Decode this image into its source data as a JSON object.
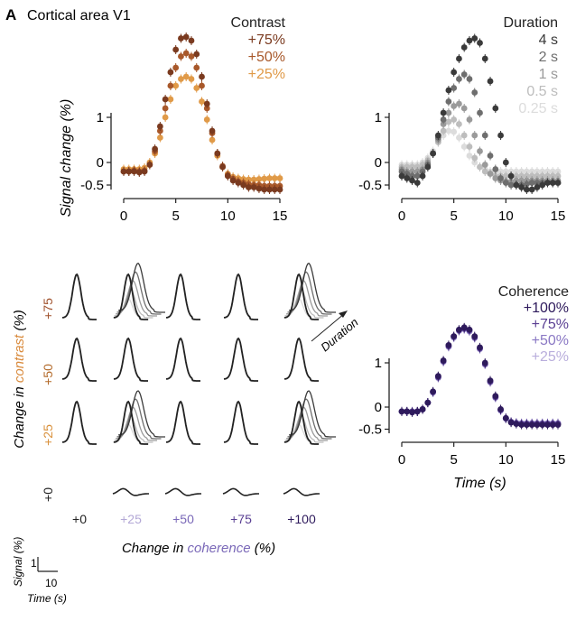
{
  "figure": {
    "panel_letter": "A",
    "panel_title": "Cortical area V1"
  },
  "grid": {
    "row_labels": [
      "+75",
      "+50",
      "+25",
      "+0"
    ],
    "row_colors": [
      "#a0522d",
      "#b36a2a",
      "#d9913c",
      "#222222"
    ],
    "col_labels": [
      "+0",
      "+25",
      "+50",
      "+75",
      "+100"
    ],
    "col_colors": [
      "#222222",
      "#b3a8d6",
      "#7a68b8",
      "#5a3f93",
      "#2e1a5c"
    ],
    "ylabel_prefix": "Change in ",
    "ylabel_emph": "contrast",
    "ylabel_suffix": " (%)",
    "xlabel_prefix": "Change in ",
    "xlabel_emph": "coherence",
    "xlabel_suffix": " (%)",
    "duration_label": "Duration",
    "scalebar_signal": "Signal (%)",
    "scalebar_time": "Time (s)",
    "scalebar_y_value": "1",
    "scalebar_x_value": "10"
  },
  "colors": {
    "contrast_75": "#7a3a1f",
    "contrast_50": "#a8582a",
    "contrast_25": "#e09a48",
    "duration": [
      "#3a3a3a",
      "#6e6e6e",
      "#9a9a9a",
      "#bdbdbd",
      "#dcdcdc"
    ],
    "coherence": [
      "#2e1a5c",
      "#5a3f93",
      "#8a78c4",
      "#b9aedc"
    ]
  },
  "chart_data": [
    {
      "type": "scatter",
      "title": "Contrast",
      "xlabel": "",
      "ylabel": "Signal change (%)",
      "xlim": [
        0,
        15
      ],
      "ylim": [
        -0.6,
        2.9
      ],
      "xticks": [
        "0",
        "5",
        "10",
        "15"
      ],
      "yticks": [
        "-0.5",
        "0",
        "1"
      ],
      "series": [
        {
          "name": "+75%",
          "x": [
            0,
            0.5,
            1,
            1.5,
            2,
            2.5,
            3,
            3.5,
            4,
            4.5,
            5,
            5.5,
            6,
            6.5,
            7,
            7.5,
            8,
            8.5,
            9,
            9.5,
            10,
            10.5,
            11,
            11.5,
            12,
            12.5,
            13,
            13.5,
            14,
            14.5,
            15
          ],
          "y": [
            -0.2,
            -0.2,
            -0.2,
            -0.22,
            -0.2,
            -0.05,
            0.3,
            0.8,
            1.4,
            2.0,
            2.5,
            2.75,
            2.78,
            2.7,
            2.4,
            1.9,
            1.3,
            0.7,
            0.2,
            -0.1,
            -0.3,
            -0.4,
            -0.45,
            -0.5,
            -0.55,
            -0.55,
            -0.58,
            -0.6,
            -0.6,
            -0.6,
            -0.6
          ]
        },
        {
          "name": "+50%",
          "x": [
            0,
            0.5,
            1,
            1.5,
            2,
            2.5,
            3,
            3.5,
            4,
            4.5,
            5,
            5.5,
            6,
            6.5,
            7,
            7.5,
            8,
            8.5,
            9,
            9.5,
            10,
            10.5,
            11,
            11.5,
            12,
            12.5,
            13,
            13.5,
            14,
            14.5,
            15
          ],
          "y": [
            -0.2,
            -0.2,
            -0.18,
            -0.2,
            -0.18,
            -0.05,
            0.25,
            0.7,
            1.2,
            1.7,
            2.1,
            2.35,
            2.42,
            2.35,
            2.1,
            1.7,
            1.2,
            0.65,
            0.2,
            -0.08,
            -0.28,
            -0.36,
            -0.42,
            -0.45,
            -0.48,
            -0.5,
            -0.5,
            -0.52,
            -0.52,
            -0.52,
            -0.52
          ]
        },
        {
          "name": "+25%",
          "x": [
            0,
            0.5,
            1,
            1.5,
            2,
            2.5,
            3,
            3.5,
            4,
            4.5,
            5,
            5.5,
            6,
            6.5,
            7,
            7.5,
            8,
            8.5,
            9,
            9.5,
            10,
            10.5,
            11,
            11.5,
            12,
            12.5,
            13,
            13.5,
            14,
            14.5,
            15
          ],
          "y": [
            -0.15,
            -0.15,
            -0.15,
            -0.15,
            -0.12,
            0.0,
            0.2,
            0.55,
            1.0,
            1.4,
            1.7,
            1.85,
            1.9,
            1.85,
            1.65,
            1.35,
            0.95,
            0.5,
            0.15,
            -0.1,
            -0.25,
            -0.32,
            -0.35,
            -0.37,
            -0.38,
            -0.38,
            -0.37,
            -0.36,
            -0.35,
            -0.35,
            -0.35
          ]
        }
      ]
    },
    {
      "type": "scatter",
      "title": "Duration",
      "xlabel": "",
      "ylabel": "",
      "xlim": [
        0,
        15
      ],
      "ylim": [
        -0.6,
        2.9
      ],
      "xticks": [
        "0",
        "5",
        "10",
        "15"
      ],
      "yticks": [
        "-0.5",
        "0",
        "1"
      ],
      "series": [
        {
          "name": "4 s",
          "x": [
            0,
            0.5,
            1,
            1.5,
            2,
            2.5,
            3,
            3.5,
            4,
            4.5,
            5,
            5.5,
            6,
            6.5,
            7,
            7.5,
            8,
            8.5,
            9,
            9.5,
            10,
            10.5,
            11,
            11.5,
            12,
            12.5,
            13,
            13.5,
            14,
            14.5,
            15
          ],
          "y": [
            -0.3,
            -0.35,
            -0.4,
            -0.45,
            -0.3,
            -0.1,
            0.2,
            0.6,
            1.1,
            1.6,
            2.0,
            2.3,
            2.55,
            2.7,
            2.75,
            2.65,
            2.3,
            1.8,
            1.2,
            0.6,
            0.0,
            -0.3,
            -0.5,
            -0.55,
            -0.6,
            -0.6,
            -0.55,
            -0.5,
            -0.45,
            -0.45,
            -0.45
          ]
        },
        {
          "name": "2 s",
          "x": [
            0,
            0.5,
            1,
            1.5,
            2,
            2.5,
            3,
            3.5,
            4,
            4.5,
            5,
            5.5,
            6,
            6.5,
            7,
            7.5,
            8,
            8.5,
            9,
            9.5,
            10,
            10.5,
            11,
            11.5,
            12,
            12.5,
            13,
            13.5,
            14,
            14.5,
            15
          ],
          "y": [
            -0.2,
            -0.25,
            -0.3,
            -0.3,
            -0.2,
            -0.05,
            0.2,
            0.55,
            0.95,
            1.35,
            1.65,
            1.85,
            1.95,
            1.85,
            1.55,
            1.1,
            0.6,
            0.15,
            -0.15,
            -0.35,
            -0.45,
            -0.5,
            -0.5,
            -0.5,
            -0.48,
            -0.45,
            -0.45,
            -0.45,
            -0.45,
            -0.45,
            -0.45
          ]
        },
        {
          "name": "1 s",
          "x": [
            0,
            0.5,
            1,
            1.5,
            2,
            2.5,
            3,
            3.5,
            4,
            4.5,
            5,
            5.5,
            6,
            6.5,
            7,
            7.5,
            8,
            8.5,
            9,
            9.5,
            10,
            10.5,
            11,
            11.5,
            12,
            12.5,
            13,
            13.5,
            14,
            14.5,
            15
          ],
          "y": [
            -0.15,
            -0.2,
            -0.2,
            -0.2,
            -0.15,
            0.0,
            0.2,
            0.5,
            0.85,
            1.1,
            1.25,
            1.3,
            1.2,
            0.95,
            0.6,
            0.25,
            -0.05,
            -0.25,
            -0.35,
            -0.4,
            -0.42,
            -0.42,
            -0.4,
            -0.4,
            -0.4,
            -0.4,
            -0.4,
            -0.4,
            -0.4,
            -0.4,
            -0.4
          ]
        },
        {
          "name": "0.5 s",
          "x": [
            0,
            0.5,
            1,
            1.5,
            2,
            2.5,
            3,
            3.5,
            4,
            4.5,
            5,
            5.5,
            6,
            6.5,
            7,
            7.5,
            8,
            8.5,
            9,
            9.5,
            10,
            10.5,
            11,
            11.5,
            12,
            12.5,
            13,
            13.5,
            14,
            14.5,
            15
          ],
          "y": [
            -0.1,
            -0.1,
            -0.1,
            -0.1,
            -0.05,
            0.05,
            0.2,
            0.45,
            0.7,
            0.9,
            0.95,
            0.85,
            0.6,
            0.35,
            0.1,
            -0.1,
            -0.2,
            -0.25,
            -0.3,
            -0.3,
            -0.3,
            -0.3,
            -0.3,
            -0.3,
            -0.3,
            -0.3,
            -0.3,
            -0.3,
            -0.3,
            -0.3,
            -0.3
          ]
        },
        {
          "name": "0.25 s",
          "x": [
            0,
            0.5,
            1,
            1.5,
            2,
            2.5,
            3,
            3.5,
            4,
            4.5,
            5,
            5.5,
            6,
            6.5,
            7,
            7.5,
            8,
            8.5,
            9,
            9.5,
            10,
            10.5,
            11,
            11.5,
            12,
            12.5,
            13,
            13.5,
            14,
            14.5,
            15
          ],
          "y": [
            -0.05,
            -0.05,
            -0.05,
            -0.05,
            0.0,
            0.1,
            0.25,
            0.45,
            0.6,
            0.7,
            0.68,
            0.55,
            0.35,
            0.15,
            0.0,
            -0.1,
            -0.15,
            -0.2,
            -0.2,
            -0.2,
            -0.2,
            -0.2,
            -0.2,
            -0.2,
            -0.2,
            -0.2,
            -0.2,
            -0.2,
            -0.2,
            -0.2,
            -0.2
          ]
        }
      ]
    },
    {
      "type": "scatter",
      "title": "Coherence",
      "xlabel": "Time (s)",
      "ylabel": "",
      "xlim": [
        0,
        15
      ],
      "ylim": [
        -0.6,
        2.0
      ],
      "xticks": [
        "0",
        "5",
        "10",
        "15"
      ],
      "yticks": [
        "-0.5",
        "0",
        "1"
      ],
      "series": [
        {
          "name": "+100%",
          "x": [
            0,
            0.5,
            1,
            1.5,
            2,
            2.5,
            3,
            3.5,
            4,
            4.5,
            5,
            5.5,
            6,
            6.5,
            7,
            7.5,
            8,
            8.5,
            9,
            9.5,
            10,
            10.5,
            11,
            11.5,
            12,
            12.5,
            13,
            13.5,
            14,
            14.5,
            15
          ],
          "y": [
            -0.1,
            -0.1,
            -0.12,
            -0.1,
            -0.05,
            0.1,
            0.35,
            0.7,
            1.05,
            1.4,
            1.6,
            1.75,
            1.8,
            1.75,
            1.6,
            1.35,
            1.0,
            0.6,
            0.25,
            -0.05,
            -0.25,
            -0.35,
            -0.38,
            -0.4,
            -0.4,
            -0.4,
            -0.4,
            -0.4,
            -0.4,
            -0.4,
            -0.4
          ]
        },
        {
          "name": "+75%",
          "x": [
            0,
            0.5,
            1,
            1.5,
            2,
            2.5,
            3,
            3.5,
            4,
            4.5,
            5,
            5.5,
            6,
            6.5,
            7,
            7.5,
            8,
            8.5,
            9,
            9.5,
            10,
            10.5,
            11,
            11.5,
            12,
            12.5,
            13,
            13.5,
            14,
            14.5,
            15
          ],
          "y": [
            -0.1,
            -0.1,
            -0.1,
            -0.1,
            -0.05,
            0.1,
            0.35,
            0.68,
            1.05,
            1.38,
            1.6,
            1.74,
            1.78,
            1.74,
            1.58,
            1.33,
            0.98,
            0.58,
            0.23,
            -0.06,
            -0.25,
            -0.34,
            -0.37,
            -0.38,
            -0.38,
            -0.38,
            -0.38,
            -0.38,
            -0.38,
            -0.38,
            -0.38
          ]
        },
        {
          "name": "+50%",
          "x": [
            0,
            0.5,
            1,
            1.5,
            2,
            2.5,
            3,
            3.5,
            4,
            4.5,
            5,
            5.5,
            6,
            6.5,
            7,
            7.5,
            8,
            8.5,
            9,
            9.5,
            10,
            10.5,
            11,
            11.5,
            12,
            12.5,
            13,
            13.5,
            14,
            14.5,
            15
          ],
          "y": [
            -0.1,
            -0.1,
            -0.1,
            -0.1,
            -0.05,
            0.1,
            0.33,
            0.67,
            1.03,
            1.37,
            1.58,
            1.73,
            1.77,
            1.72,
            1.57,
            1.32,
            0.97,
            0.57,
            0.22,
            -0.07,
            -0.26,
            -0.34,
            -0.36,
            -0.37,
            -0.37,
            -0.37,
            -0.37,
            -0.37,
            -0.37,
            -0.37,
            -0.37
          ]
        },
        {
          "name": "+25%",
          "x": [
            0,
            0.5,
            1,
            1.5,
            2,
            2.5,
            3,
            3.5,
            4,
            4.5,
            5,
            5.5,
            6,
            6.5,
            7,
            7.5,
            8,
            8.5,
            9,
            9.5,
            10,
            10.5,
            11,
            11.5,
            12,
            12.5,
            13,
            13.5,
            14,
            14.5,
            15
          ],
          "y": [
            -0.1,
            -0.1,
            -0.1,
            -0.1,
            -0.05,
            0.1,
            0.33,
            0.66,
            1.02,
            1.36,
            1.57,
            1.72,
            1.76,
            1.71,
            1.56,
            1.31,
            0.96,
            0.56,
            0.21,
            -0.08,
            -0.26,
            -0.33,
            -0.35,
            -0.36,
            -0.36,
            -0.36,
            -0.36,
            -0.36,
            -0.36,
            -0.36,
            -0.36
          ]
        }
      ]
    }
  ]
}
